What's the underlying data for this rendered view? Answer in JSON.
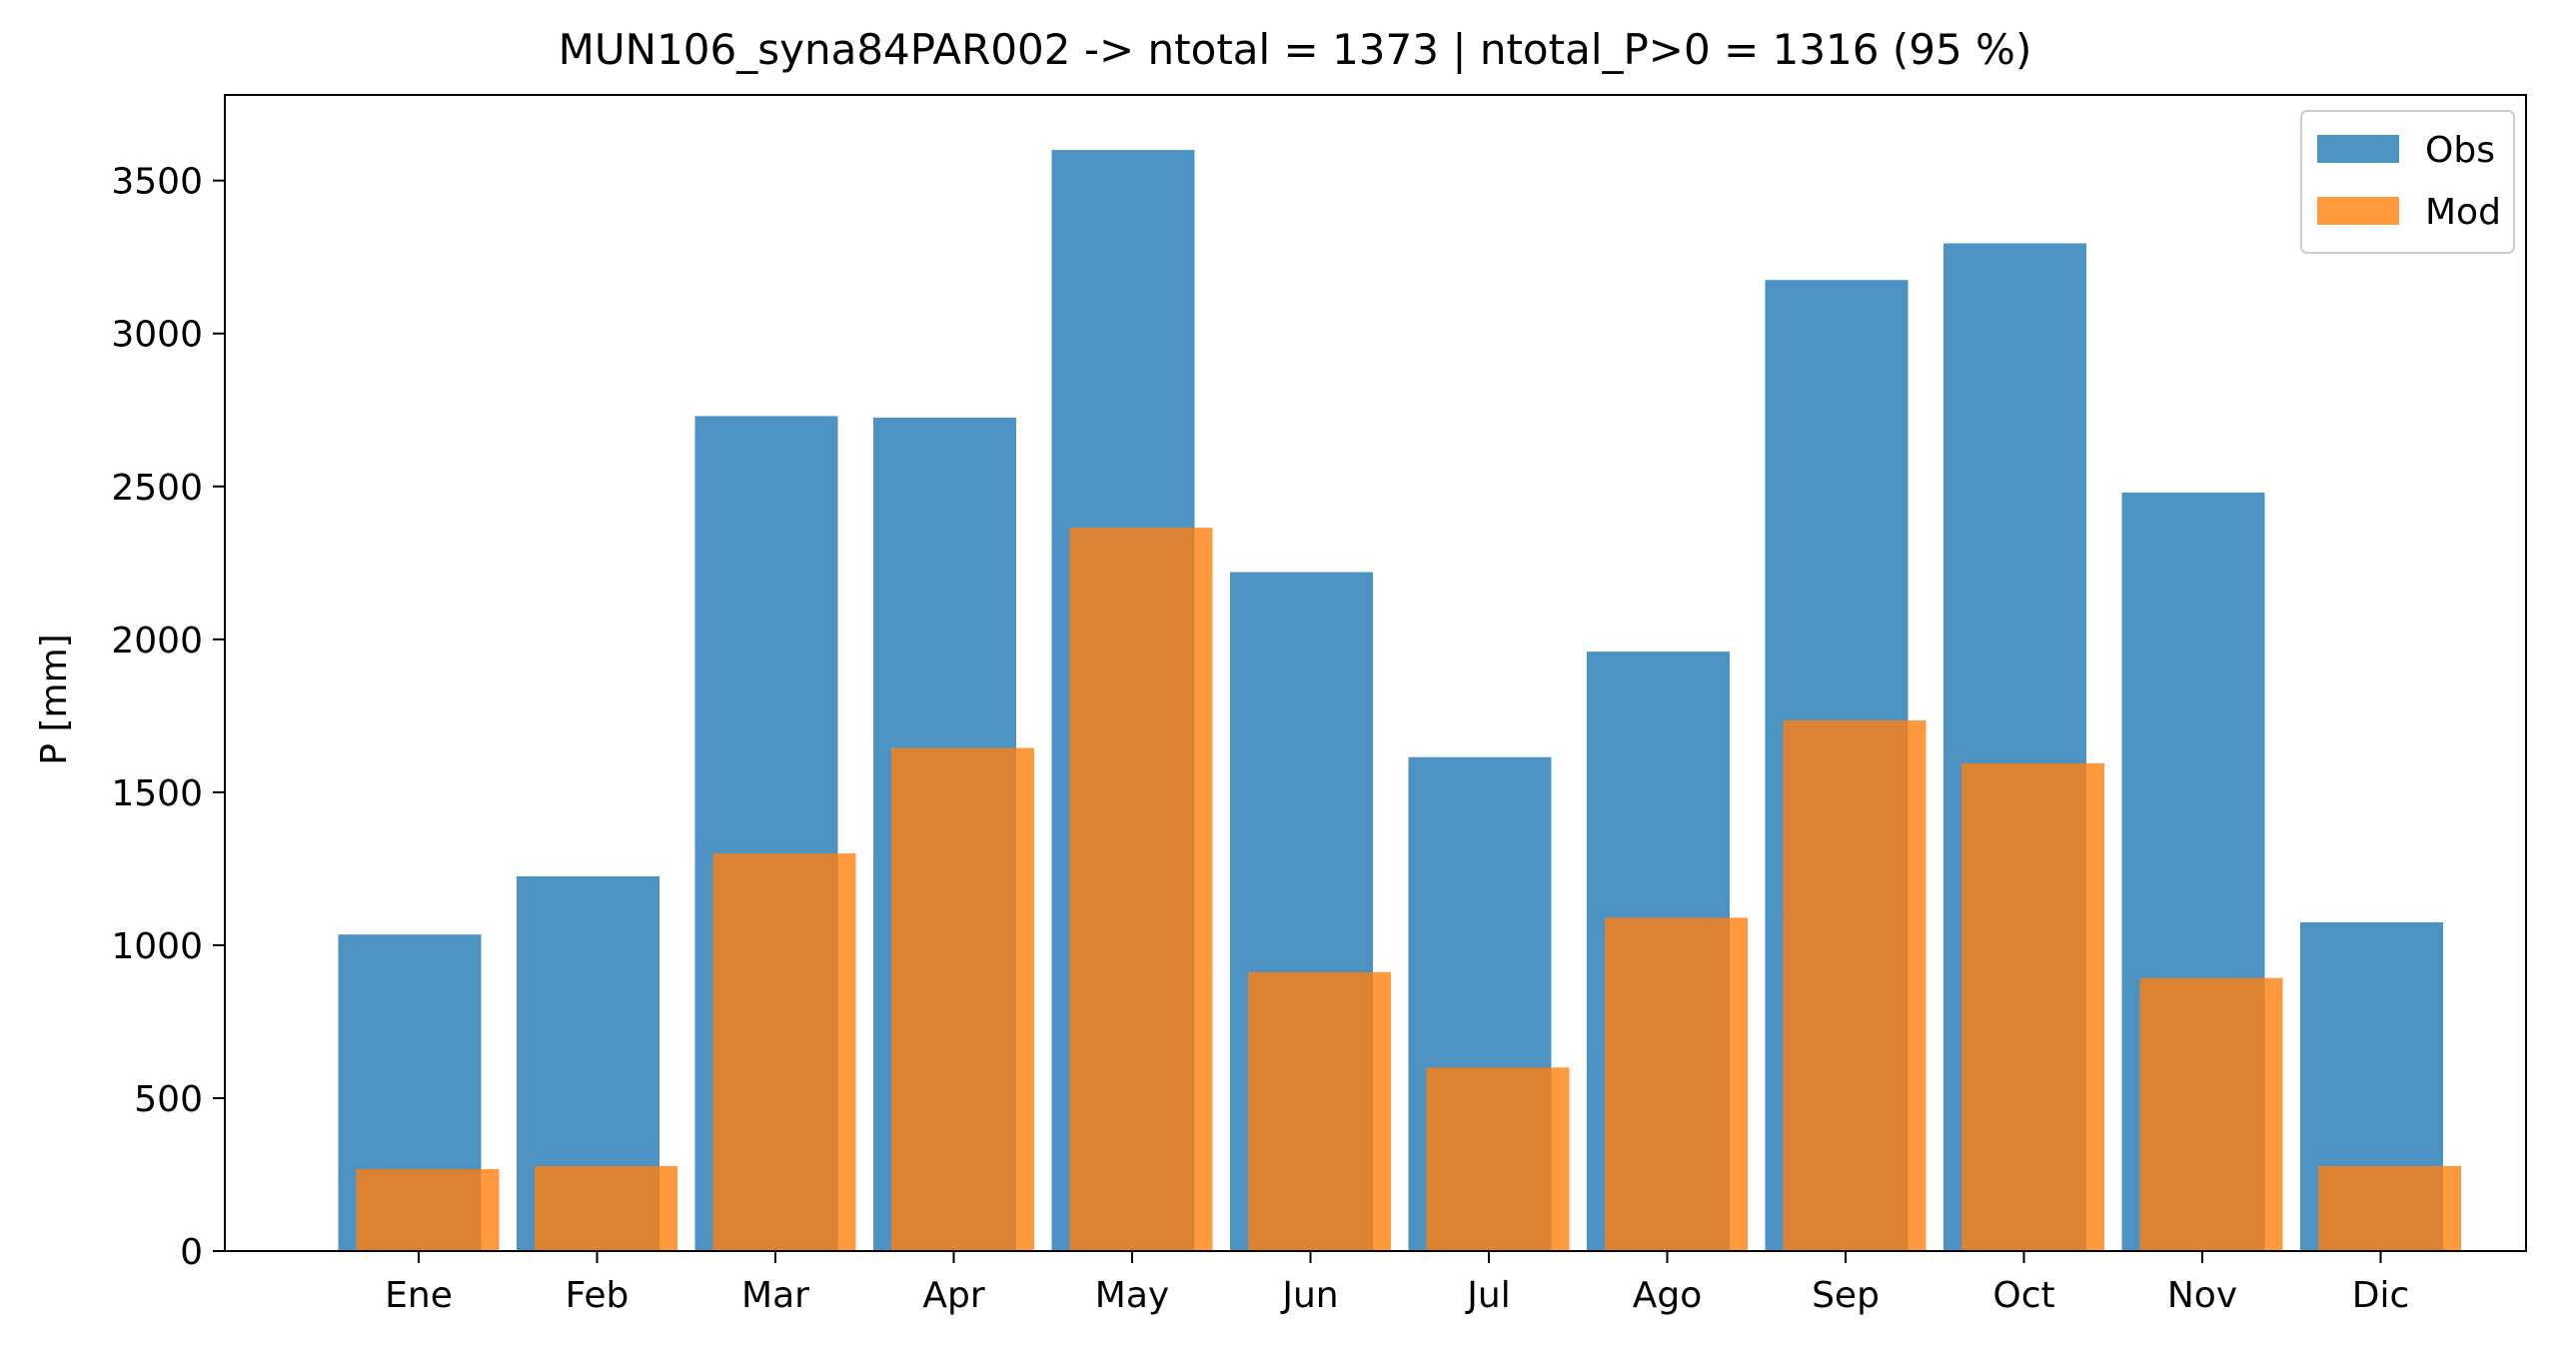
{
  "chart_data": {
    "type": "bar",
    "title": "MUN106_syna84PAR002 -> ntotal = 1373 | ntotal_P>0 = 1316 (95 %)",
    "xlabel": "",
    "ylabel": "P [mm]",
    "ylim": [
      0,
      3780
    ],
    "yticks": [
      0,
      500,
      1000,
      1500,
      2000,
      2500,
      3000,
      3500
    ],
    "categories": [
      "Ene",
      "Feb",
      "Mar",
      "Apr",
      "May",
      "Jun",
      "Jul",
      "Ago",
      "Sep",
      "Oct",
      "Nov",
      "Dic"
    ],
    "series": [
      {
        "name": "Obs",
        "color": "#1f77b4",
        "values": [
          1035,
          1225,
          2730,
          2725,
          3600,
          2220,
          1615,
          1960,
          3175,
          3295,
          2480,
          1075
        ]
      },
      {
        "name": "Mod",
        "color": "#ff7f0e",
        "values": [
          268,
          278,
          1300,
          1645,
          2365,
          912,
          600,
          1090,
          1735,
          1595,
          893,
          278
        ]
      }
    ],
    "legend_position": "top-right",
    "grid": false
  }
}
